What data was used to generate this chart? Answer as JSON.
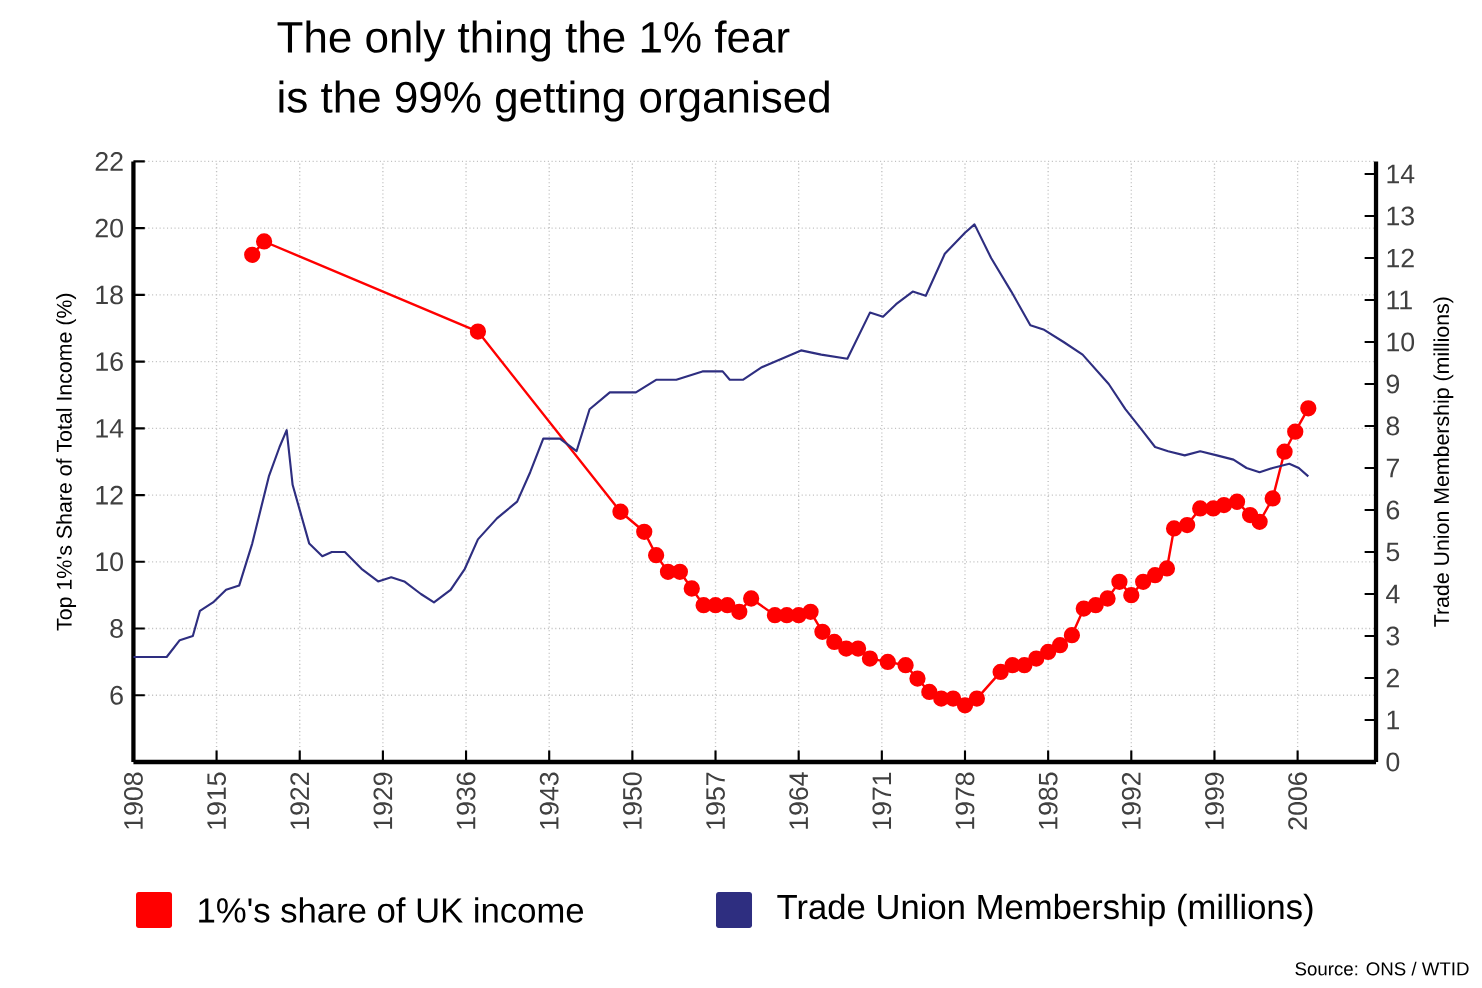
{
  "chart_data": {
    "type": "line",
    "title": "The only thing the 1% fear",
    "subtitle": "is the 99% getting organised",
    "ylabel": "Top 1%'s Share of Total Income (%)",
    "y2label": "Trade Union Membership (millions)",
    "xlim": [
      1908,
      2012.6
    ],
    "xticks": [
      1908,
      1915,
      1922,
      1929,
      1936,
      1943,
      1950,
      1957,
      1964,
      1971,
      1978,
      1985,
      1992,
      1999,
      2006
    ],
    "ylim": [
      4,
      22
    ],
    "yticks": [
      6,
      8,
      10,
      12,
      14,
      16,
      18,
      20,
      22
    ],
    "y2lim": [
      0,
      14.3
    ],
    "y2ticks": [
      0,
      1,
      2,
      3,
      4,
      5,
      6,
      7,
      8,
      9,
      10,
      11,
      12,
      13,
      14
    ],
    "grid": true,
    "legend": "bottom",
    "series": [
      {
        "name": "1%'s share of UK income",
        "color": "#ff0000",
        "axis": "y",
        "marker": "circle",
        "x": [
          1918,
          1919,
          1937,
          1949,
          1951,
          1952,
          1953,
          1954,
          1955,
          1956,
          1957,
          1958,
          1959,
          1960,
          1962,
          1963,
          1964,
          1965,
          1966,
          1967,
          1968,
          1969,
          1970,
          1971.5,
          1973,
          1974,
          1975,
          1976,
          1977,
          1978,
          1979,
          1981,
          1982,
          1983,
          1984,
          1985,
          1986,
          1987,
          1988,
          1989,
          1990,
          1991,
          1992,
          1993,
          1994,
          1995,
          1995.6,
          1996.7,
          1997.8,
          1998.9,
          1999.8,
          2000.9,
          2002,
          2002.8,
          2003.9,
          2004.9,
          2005.8,
          2006.9
        ],
        "values": [
          19.2,
          19.6,
          16.9,
          11.5,
          10.9,
          10.2,
          9.7,
          9.7,
          9.2,
          8.7,
          8.7,
          8.7,
          8.5,
          8.9,
          8.4,
          8.4,
          8.4,
          8.5,
          7.9,
          7.6,
          7.4,
          7.4,
          7.1,
          7.0,
          6.9,
          6.5,
          6.1,
          5.9,
          5.9,
          5.7,
          5.9,
          6.7,
          6.9,
          6.9,
          7.1,
          7.3,
          7.5,
          7.8,
          8.6,
          8.7,
          8.9,
          9.4,
          9.0,
          9.4,
          9.6,
          9.8,
          11.0,
          11.1,
          11.6,
          11.6,
          11.7,
          11.8,
          11.4,
          11.2,
          11.9,
          13.3,
          13.9,
          14.6
        ]
      },
      {
        "name": "Trade Union Membership (millions)",
        "color": "#2e2e80",
        "axis": "y2",
        "marker": "none",
        "x": [
          1908,
          1910.8,
          1911.9,
          1913,
          1913.6,
          1914.7,
          1915.8,
          1916.9,
          1918,
          1919.4,
          1920.3,
          1920.9,
          1921.4,
          1922.8,
          1923.9,
          1924.7,
          1925.8,
          1927.2,
          1928.6,
          1929.7,
          1930.8,
          1932.2,
          1933.3,
          1934.7,
          1935.9,
          1937,
          1938.6,
          1940.3,
          1941.4,
          1942.5,
          1943.9,
          1945.3,
          1946.4,
          1948.1,
          1950.3,
          1952,
          1953.7,
          1955.9,
          1957.6,
          1958.2,
          1959.3,
          1960.9,
          1964.2,
          1965.9,
          1968.1,
          1970,
          1971.1,
          1972.2,
          1973.6,
          1974.7,
          1976.3,
          1978,
          1978.8,
          1980.2,
          1981.9,
          1983.5,
          1984.6,
          1986.3,
          1987.9,
          1990.1,
          1991.5,
          1992.9,
          1994,
          1995.1,
          1996.5,
          1997.8,
          1999.2,
          2000.6,
          2001.7,
          2002.8,
          2003.9,
          2005.3,
          2006.1,
          2006.9
        ],
        "values": [
          2.5,
          2.5,
          2.9,
          3.0,
          3.6,
          3.8,
          4.1,
          4.2,
          5.2,
          6.8,
          7.5,
          7.9,
          6.6,
          5.2,
          4.9,
          5.0,
          5.0,
          4.6,
          4.3,
          4.4,
          4.3,
          4.0,
          3.8,
          4.1,
          4.6,
          5.3,
          5.8,
          6.2,
          6.9,
          7.7,
          7.7,
          7.4,
          8.4,
          8.8,
          8.8,
          9.1,
          9.1,
          9.3,
          9.3,
          9.1,
          9.1,
          9.4,
          9.8,
          9.7,
          9.6,
          10.7,
          10.6,
          10.9,
          11.2,
          11.1,
          12.1,
          12.6,
          12.8,
          12.0,
          11.2,
          10.4,
          10.3,
          10.0,
          9.7,
          9.0,
          8.4,
          7.9,
          7.5,
          7.4,
          7.3,
          7.4,
          7.3,
          7.2,
          7.0,
          6.9,
          7.0,
          7.1,
          7.0,
          6.8
        ]
      }
    ],
    "annotations": [
      "Source: ONS / WTID"
    ]
  }
}
